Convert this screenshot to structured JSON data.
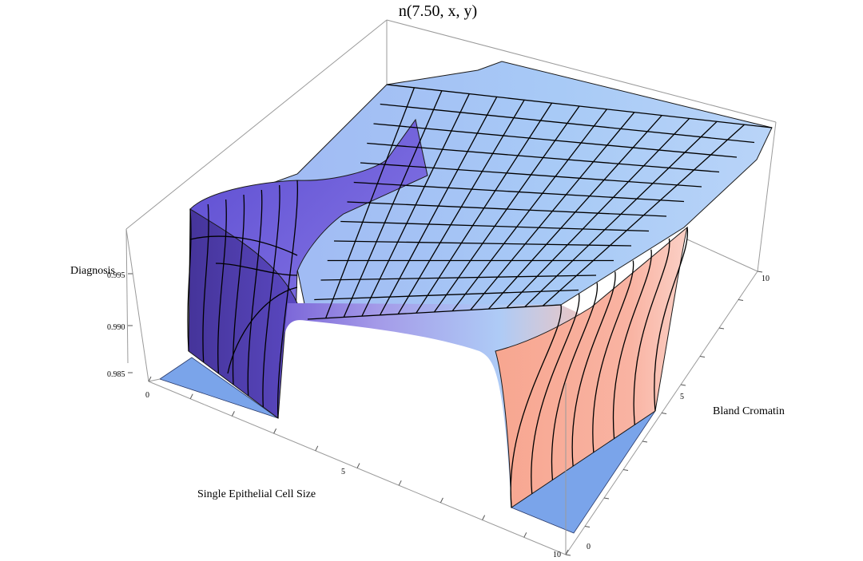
{
  "chart_data": {
    "type": "surface3d",
    "title": "n(7.50, x, y)",
    "xlabel": "Single Epithelial Cell Size",
    "ylabel": "Bland Cromatin",
    "zlabel": "Diagnosis",
    "x_ticks": [
      "0",
      "5",
      "10"
    ],
    "y_ticks": [
      "0",
      "5",
      "10"
    ],
    "z_ticks": [
      "0.985",
      "0.990",
      "0.995"
    ],
    "xlim": [
      0,
      10
    ],
    "ylim": [
      0,
      10
    ],
    "zlim": [
      0.982,
      1.0
    ],
    "plateau_value": 0.999,
    "low_corner_value": 0.982,
    "colors": {
      "plateau": "#9ec4f5",
      "left_wall": "#4a3a9a",
      "right_wall": "#f4a08c",
      "floor": "#7aa4ea",
      "box": "#999999",
      "mesh": "#000000"
    }
  }
}
